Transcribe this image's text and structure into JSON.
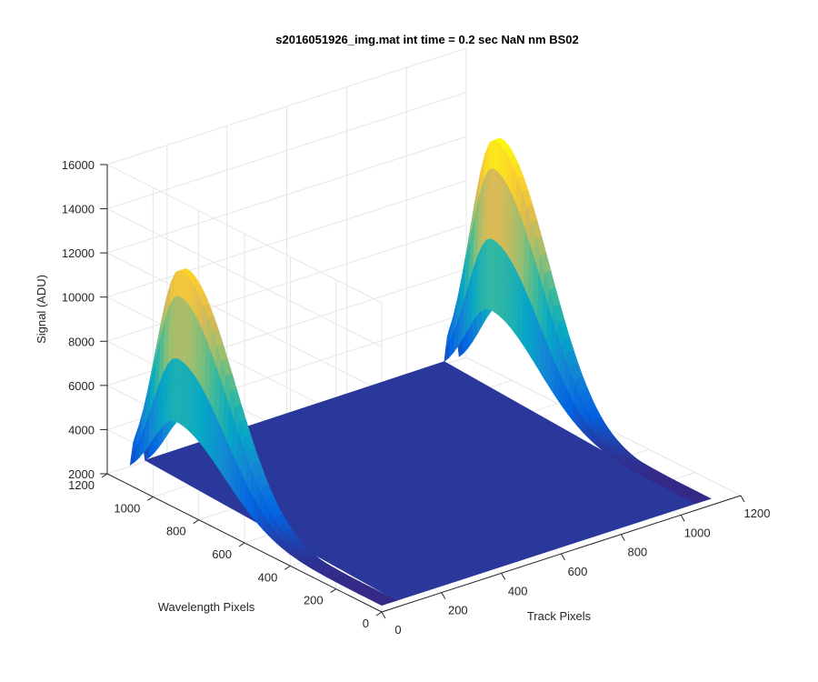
{
  "chart_data": {
    "type": "surface",
    "title": "s2016051926_img.mat int time = 0.2 sec  NaN nm BS02",
    "xlabel": "Track Pixels",
    "ylabel": "Wavelength Pixels",
    "zlabel": "Signal (ADU)",
    "x_ticks": [
      0,
      200,
      400,
      600,
      800,
      1000,
      1200
    ],
    "y_ticks": [
      0,
      200,
      400,
      600,
      800,
      1000,
      1200
    ],
    "z_ticks": [
      2000,
      4000,
      6000,
      8000,
      10000,
      12000,
      14000,
      16000
    ],
    "xlim": [
      0,
      1200
    ],
    "ylim": [
      0,
      1200
    ],
    "zlim": [
      2000,
      16000
    ],
    "grid": true,
    "colormap": "parula",
    "colormap_colors": [
      "#352a87",
      "#0363e1",
      "#1485d4",
      "#06a7c6",
      "#38b99e",
      "#92bf73",
      "#d9ba56",
      "#fcce2e",
      "#f9fb0e"
    ],
    "surface": {
      "track_extent": [
        0,
        1100
      ],
      "wavelength_extent": [
        0,
        1100
      ],
      "baseline_signal": 2300,
      "peaks": [
        {
          "track_range": [
            0,
            50
          ],
          "peak_wavelength": 900,
          "peak_signal": 12700
        },
        {
          "track_range": [
            1050,
            1100
          ],
          "peak_wavelength": 900,
          "peak_signal": 14000
        }
      ]
    }
  }
}
